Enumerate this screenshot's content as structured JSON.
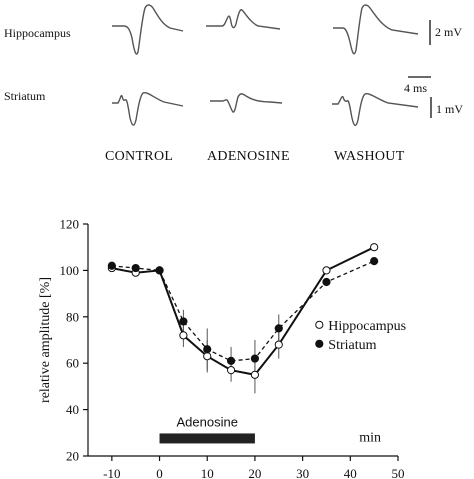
{
  "traces": {
    "row_labels": [
      "Hippocampus",
      "Striatum"
    ],
    "conditions": [
      "CONTROL",
      "ADENOSINE",
      "WASHOUT"
    ],
    "scalebars": {
      "hippocampus_v": "2 mV",
      "time": "4 ms",
      "striatum_v": "1 mV"
    }
  },
  "chart_data": {
    "type": "line",
    "title": "",
    "xlabel": "",
    "x_unit_label": "min",
    "ylabel": "relative amplitude [%]",
    "xlim": [
      -15,
      50
    ],
    "ylim": [
      20,
      120
    ],
    "xticks": [
      -10,
      0,
      10,
      20,
      30,
      40,
      50
    ],
    "yticks": [
      20,
      40,
      60,
      80,
      100,
      120
    ],
    "grid": false,
    "legend_position": "right",
    "series": [
      {
        "name": "Hippocampus",
        "marker": "open-circle",
        "line": "solid",
        "x": [
          -10,
          -5,
          0,
          5,
          10,
          15,
          20,
          25,
          35,
          45
        ],
        "y": [
          101,
          99,
          100,
          72,
          63,
          57,
          55,
          68,
          100,
          110
        ],
        "err": [
          0,
          0,
          0,
          5,
          7,
          5,
          8,
          6,
          0,
          0
        ]
      },
      {
        "name": "Striatum",
        "marker": "filled-circle",
        "line": "dashed",
        "x": [
          -10,
          -5,
          0,
          5,
          10,
          15,
          20,
          25,
          35,
          45
        ],
        "y": [
          102,
          101,
          100,
          78,
          66,
          61,
          62,
          75,
          95,
          104
        ],
        "err": [
          0,
          0,
          0,
          5,
          9,
          6,
          8,
          6,
          0,
          0
        ]
      }
    ],
    "annotations": [
      {
        "label": "Adenosine",
        "x_start": 0,
        "x_end": 20,
        "kind": "application-bar"
      }
    ]
  }
}
